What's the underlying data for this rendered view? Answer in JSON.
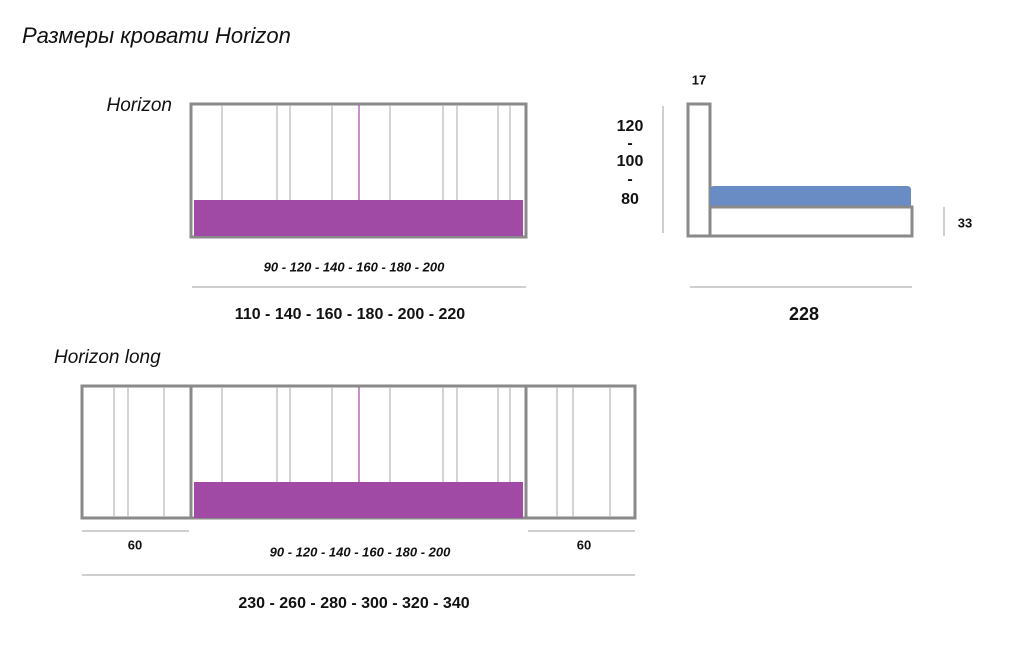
{
  "title": "Размеры кровати Horizon",
  "horizon": {
    "label": "Horizon",
    "mattress_widths": "90 - 120 - 140 - 160 - 180 - 200",
    "overall_widths": "110 - 140 - 160 - 180 - 200 - 220"
  },
  "side_view": {
    "headboard_thickness": "17",
    "heights": [
      "120",
      "-",
      "100",
      "-",
      "80"
    ],
    "base_height": "33",
    "length": "228"
  },
  "horizon_long": {
    "label": "Horizon long",
    "left_panel": "60",
    "mattress_widths": "90 - 120 - 140 - 160 - 180 - 200",
    "right_panel": "60",
    "overall_widths": "230 - 260 - 280 - 300 - 320 - 340"
  }
}
